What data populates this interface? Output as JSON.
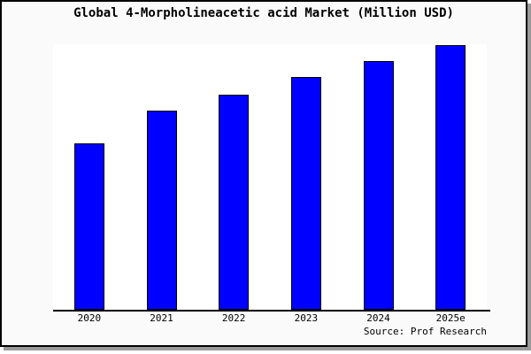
{
  "colors": {
    "window_background": "#fafafa",
    "plot_background": "#ffffff",
    "bar_fill": "#0000ff",
    "bar_edge": "#000000",
    "axis_line": "#000000",
    "window_border": "#000000",
    "window_shadow": "#9a9a9a",
    "text": "#000000"
  },
  "chart_data": {
    "type": "bar",
    "title": "Global 4-Morpholineacetic acid Market (Million USD)",
    "xlabel": "",
    "ylabel": "",
    "categories": [
      "2020",
      "2021",
      "2022",
      "2023",
      "2024",
      "2025e"
    ],
    "values_pct_of_plot_height": [
      62.7,
      75.0,
      81.0,
      87.7,
      93.7,
      99.6
    ],
    "y_axis_visible": false,
    "gridlines": false,
    "legend": false,
    "bar_color": "#0000ff",
    "bar_edge_color": "#000000",
    "source_note": "Source: Prof Research"
  }
}
